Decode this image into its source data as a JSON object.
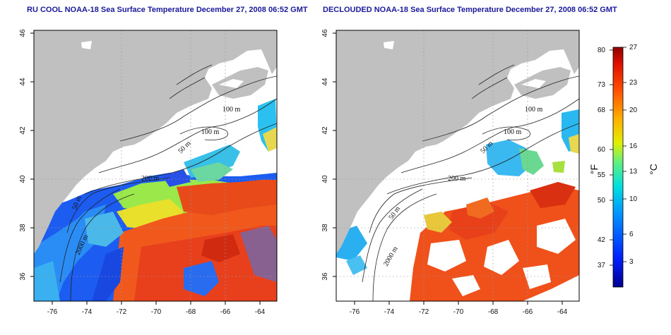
{
  "titles": {
    "left": "RU COOL NOAA-18 Sea Surface Temperature December 27, 2008 06:52 GMT",
    "right": "DECLOUDED NOAA-18 Sea Surface Temperature December 27, 2008 06:52 GMT"
  },
  "axes": {
    "lat_ticks": [
      "36",
      "38",
      "40",
      "42",
      "44",
      "46"
    ],
    "lon_ticks": [
      "-76",
      "-74",
      "-72",
      "-70",
      "-68",
      "-66",
      "-64"
    ]
  },
  "contour_labels": {
    "left": [
      "100 m",
      "100 m",
      "50 m",
      "200 m",
      "50 m",
      "2000 m"
    ],
    "right": [
      "100 m",
      "100 m",
      "50 m",
      "200 m",
      "50 m",
      "2000 m"
    ]
  },
  "colorbar": {
    "unit_f": "°F",
    "unit_c": "°C",
    "fahrenheit_ticks": [
      "80",
      "73",
      "68",
      "60",
      "55",
      "50",
      "42",
      "37"
    ],
    "celsius_ticks": [
      "27",
      "23",
      "20",
      "16",
      "13",
      "10",
      "6",
      "3"
    ]
  },
  "colors": {
    "land": "#c0c0c0",
    "no_data": "#ffffff",
    "title": "#1a1a9a"
  }
}
